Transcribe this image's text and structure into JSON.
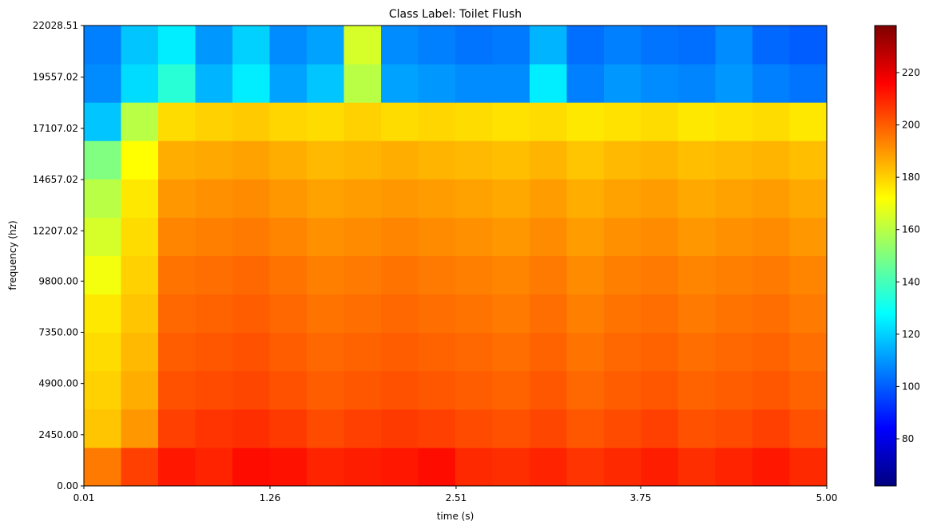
{
  "chart_data": {
    "type": "heatmap",
    "title": "Class Label: Toilet Flush",
    "xlabel": "time (s)",
    "ylabel": "frequency (hz)",
    "colormap": "jet",
    "xlim": [
      0.01,
      5.0
    ],
    "ylim": [
      0,
      22028.51
    ],
    "zlim": [
      62,
      238
    ],
    "xticks": [
      0.01,
      1.26,
      2.51,
      3.75,
      {
        "value": 5.0,
        "label": "5.00"
      }
    ],
    "yticks": [
      {
        "value": 0,
        "label": "0.00"
      },
      {
        "value": 2450,
        "label": "2450.00"
      },
      {
        "value": 4900,
        "label": "4900.00"
      },
      {
        "value": 7350,
        "label": "7350.00"
      },
      {
        "value": 9800,
        "label": "9800.00"
      },
      {
        "value": 12207.02,
        "label": "12207.02"
      },
      {
        "value": 14657.02,
        "label": "14657.02"
      },
      {
        "value": 17107.02,
        "label": "17107.02"
      },
      {
        "value": 19557.02,
        "label": "19557.02"
      },
      22028.51
    ],
    "colorbar_ticks": [
      80,
      100,
      120,
      140,
      160,
      180,
      200,
      220
    ],
    "values": [
      [
        195,
        205,
        212,
        210,
        214,
        213,
        210,
        211,
        212,
        214,
        209,
        208,
        210,
        207,
        209,
        211,
        208,
        210,
        212,
        209
      ],
      [
        182,
        190,
        205,
        207,
        208,
        206,
        203,
        205,
        206,
        205,
        203,
        202,
        204,
        201,
        203,
        205,
        202,
        203,
        205,
        202
      ],
      [
        180,
        186,
        202,
        203,
        204,
        202,
        200,
        201,
        202,
        201,
        200,
        199,
        201,
        198,
        200,
        201,
        199,
        200,
        201,
        199
      ],
      [
        178,
        184,
        200,
        201,
        202,
        200,
        198,
        199,
        200,
        199,
        198,
        197,
        199,
        196,
        198,
        199,
        197,
        198,
        199,
        197
      ],
      [
        176,
        182,
        198,
        199,
        200,
        198,
        196,
        197,
        198,
        197,
        196,
        195,
        197,
        194,
        196,
        197,
        195,
        196,
        197,
        195
      ],
      [
        170,
        180,
        196,
        197,
        198,
        196,
        194,
        195,
        196,
        195,
        194,
        193,
        195,
        192,
        194,
        195,
        193,
        194,
        195,
        193
      ],
      [
        165,
        178,
        193,
        194,
        195,
        193,
        191,
        192,
        193,
        192,
        191,
        190,
        192,
        189,
        191,
        192,
        190,
        191,
        192,
        190
      ],
      [
        160,
        176,
        190,
        191,
        192,
        190,
        188,
        189,
        190,
        189,
        188,
        187,
        189,
        186,
        188,
        189,
        187,
        188,
        189,
        187
      ],
      [
        150,
        172,
        186,
        187,
        188,
        186,
        184,
        185,
        186,
        185,
        184,
        183,
        185,
        182,
        184,
        185,
        183,
        184,
        185,
        183
      ],
      [
        118,
        160,
        178,
        180,
        181,
        179,
        178,
        180,
        178,
        179,
        178,
        177,
        178,
        176,
        177,
        178,
        176,
        177,
        178,
        176
      ],
      [
        108,
        122,
        135,
        115,
        125,
        112,
        118,
        160,
        112,
        110,
        108,
        108,
        125,
        106,
        110,
        108,
        107,
        110,
        106,
        104
      ],
      [
        106,
        118,
        125,
        110,
        120,
        108,
        112,
        165,
        108,
        106,
        104,
        105,
        115,
        103,
        106,
        104,
        103,
        108,
        102,
        100
      ]
    ]
  }
}
